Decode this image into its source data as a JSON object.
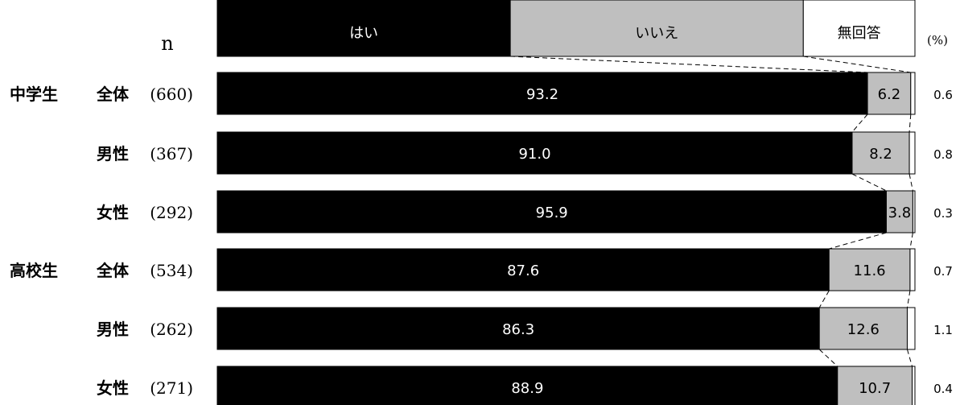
{
  "chart_data": {
    "type": "bar",
    "stacked": true,
    "orientation": "horizontal",
    "unit_label": "(%)",
    "n_header": "n",
    "legend": [
      "はい",
      "いいえ",
      "無回答"
    ],
    "colors": [
      "#000000",
      "#bfbfbf",
      "#ffffff"
    ],
    "rows": [
      {
        "group": "中学生",
        "label": "全体",
        "n": "(660)",
        "values": [
          93.2,
          6.2,
          0.6
        ],
        "value_labels": [
          "93.2",
          "6.2",
          "0.6"
        ]
      },
      {
        "group": "",
        "label": "男性",
        "n": "(367)",
        "values": [
          91.0,
          8.2,
          0.8
        ],
        "value_labels": [
          "91.0",
          "8.2",
          "0.8"
        ]
      },
      {
        "group": "",
        "label": "女性",
        "n": "(292)",
        "values": [
          95.9,
          3.8,
          0.3
        ],
        "value_labels": [
          "95.9",
          "3.8",
          "0.3"
        ]
      },
      {
        "group": "高校生",
        "label": "全体",
        "n": "(534)",
        "values": [
          87.6,
          11.6,
          0.7
        ],
        "value_labels": [
          "87.6",
          "11.6",
          "0.7"
        ]
      },
      {
        "group": "",
        "label": "男性",
        "n": "(262)",
        "values": [
          86.3,
          12.6,
          1.1
        ],
        "value_labels": [
          "86.3",
          "12.6",
          "1.1"
        ]
      },
      {
        "group": "",
        "label": "女性",
        "n": "(271)",
        "values": [
          88.9,
          10.7,
          0.4
        ],
        "value_labels": [
          "88.9",
          "10.7",
          "0.4"
        ]
      }
    ]
  }
}
